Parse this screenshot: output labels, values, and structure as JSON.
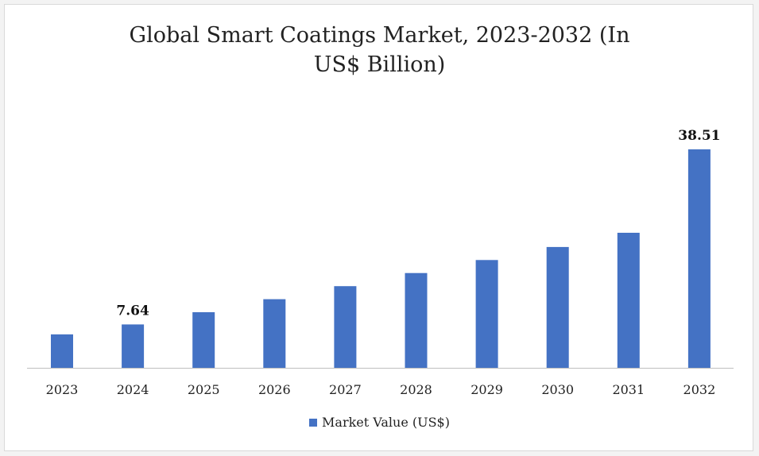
{
  "chart_data": {
    "type": "bar",
    "title_lines": [
      "Global Smart Coatings Market, 2023-2032 (In",
      "US$ Billion)"
    ],
    "categories": [
      "2023",
      "2024",
      "2025",
      "2026",
      "2027",
      "2028",
      "2029",
      "2030",
      "2031",
      "2032"
    ],
    "series": [
      {
        "name": "Market Value (US$)",
        "values": [
          5.9,
          7.64,
          9.8,
          12.1,
          14.4,
          16.7,
          19.0,
          21.3,
          23.8,
          38.51
        ],
        "color": "#4472c4"
      }
    ],
    "data_labels": [
      {
        "category": "2024",
        "text": "7.64"
      },
      {
        "category": "2032",
        "text": "38.51"
      }
    ],
    "legend_position": "bottom",
    "grid": false
  }
}
